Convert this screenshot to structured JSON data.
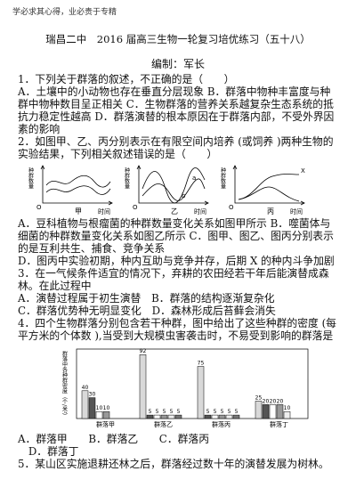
{
  "header": "学必求其心得，业必贵于专精",
  "title": "瑞昌二中　2016 届高三生物一轮复习培优练习（五十八）",
  "editor": "编制：军长",
  "questions": [
    {
      "stem": "1．下列关于群落的叙述，不正确的是（　　）",
      "options": [
        "A．土壤中的小动物也存在垂直分层现象",
        "B．群落中物种丰富度与种群中物种数目呈正相关",
        "C．生物群落的营养关系越复杂生态系统的抵抗力稳定性越高",
        "D．群落演替的根本原因在于群落内部，不受外界因素的影响"
      ]
    },
    {
      "stem": "2．如图甲、乙、丙分别表示在有限空间内培养 (或饲养 )两种生物的实验结果，下列相关叙述错误的是（　　）",
      "options": [
        "A．豆科植物与根瘤菌的种群数量变化关系如图甲所示",
        "B．噬菌体与细菌的种群数量变化关系如图乙所示",
        "C．图甲、图乙、图丙分别表示的是互利共生、捕食、竞争关系",
        "D．图丙中实验初期，种内互助与竞争并存，后期 X 的种内斗争加剧"
      ]
    },
    {
      "stem": "3．在一气候条件适宜的情况下，弃耕的农田经若干年后能演替成森林。在此过程中",
      "options": [
        "A．演替过程属于初生演替",
        "B．群落的结构逐渐复杂化",
        "C．群落优势种无明显变化",
        "D．森林形成后苔藓会消失"
      ]
    },
    {
      "stem": "4．四个生物群落分别包含若干种群，图中给出了这些种群的密度 (每平方米的个体数 ),当受到大规模虫害袭击时，不易受到影响的群落是",
      "options": [
        "A．群落甲",
        "B．群落乙",
        "C．群落丙",
        "D．群落丁"
      ]
    },
    {
      "stem": "5．某山区实施退耕还林之后，群落经过数十年的演替发展为树林。"
    }
  ],
  "figure1": {
    "y_label": "种群数量",
    "x_label": "时间",
    "origin": "O",
    "panels": [
      "甲",
      "乙",
      "丙"
    ],
    "curve_labels": [
      "a",
      "b",
      "X"
    ]
  },
  "figure2": {
    "type": "bar",
    "y_label": "群落中各种群密度（个/米²）",
    "ylim": [
      0,
      100
    ],
    "groups": [
      {
        "name": "群落甲",
        "values": [
          40,
          30,
          10,
          10
        ]
      },
      {
        "name": "群落乙",
        "values": [
          92,
          5,
          5,
          5,
          5,
          5
        ]
      },
      {
        "name": "群落丙",
        "values": [
          75,
          5,
          5,
          5,
          5,
          5
        ]
      },
      {
        "name": "群落丁",
        "values": [
          25,
          20,
          20,
          20,
          10
        ]
      }
    ]
  }
}
